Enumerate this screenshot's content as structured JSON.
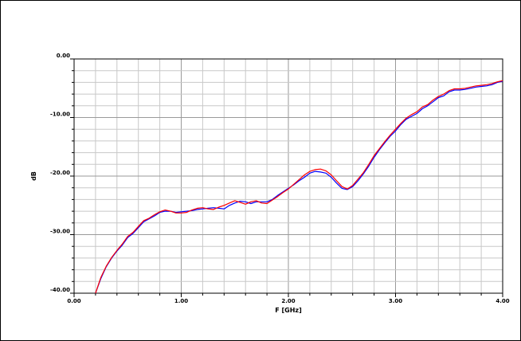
{
  "chart_data": {
    "type": "line",
    "xlabel": "F [GHz]",
    "ylabel": "dB",
    "xlim": [
      0,
      4
    ],
    "ylim": [
      -40,
      0
    ],
    "grid": true,
    "x_ticks": [
      "0.00",
      "1.00",
      "2.00",
      "3.00",
      "4.00"
    ],
    "y_ticks": [
      "0.00",
      "-10.00",
      "-20.00",
      "-30.00",
      "-40.00"
    ],
    "x_tick_values": [
      0,
      1,
      2,
      3,
      4
    ],
    "y_tick_values": [
      0,
      -10,
      -20,
      -30,
      -40
    ],
    "series": [
      {
        "color": "#0000ff",
        "x": [
          0.2,
          0.25,
          0.3,
          0.35,
          0.4,
          0.45,
          0.5,
          0.55,
          0.6,
          0.65,
          0.7,
          0.75,
          0.8,
          0.85,
          0.9,
          0.95,
          1.0,
          1.05,
          1.1,
          1.15,
          1.2,
          1.25,
          1.3,
          1.35,
          1.4,
          1.45,
          1.5,
          1.55,
          1.6,
          1.65,
          1.7,
          1.75,
          1.8,
          1.85,
          1.9,
          1.95,
          2.0,
          2.05,
          2.1,
          2.15,
          2.2,
          2.25,
          2.3,
          2.35,
          2.4,
          2.45,
          2.5,
          2.55,
          2.6,
          2.65,
          2.7,
          2.75,
          2.8,
          2.85,
          2.9,
          2.95,
          3.0,
          3.05,
          3.1,
          3.15,
          3.2,
          3.25,
          3.3,
          3.35,
          3.4,
          3.45,
          3.5,
          3.55,
          3.6,
          3.65,
          3.7,
          3.75,
          3.8,
          3.85,
          3.9,
          3.95,
          4.0
        ],
        "y": [
          -40.0,
          -37.5,
          -35.5,
          -34.0,
          -32.8,
          -31.8,
          -30.5,
          -29.8,
          -28.8,
          -27.8,
          -27.3,
          -26.8,
          -26.2,
          -26.0,
          -26.0,
          -26.2,
          -26.1,
          -26.0,
          -25.9,
          -25.7,
          -25.6,
          -25.5,
          -25.4,
          -25.5,
          -25.6,
          -25.0,
          -24.6,
          -24.3,
          -24.4,
          -24.7,
          -24.4,
          -24.4,
          -24.4,
          -24.0,
          -23.3,
          -22.7,
          -22.1,
          -21.5,
          -20.8,
          -20.2,
          -19.5,
          -19.2,
          -19.3,
          -19.5,
          -20.2,
          -21.2,
          -22.1,
          -22.3,
          -21.8,
          -20.8,
          -19.6,
          -18.3,
          -16.8,
          -15.5,
          -14.3,
          -13.2,
          -12.3,
          -11.2,
          -10.3,
          -9.8,
          -9.3,
          -8.5,
          -8.0,
          -7.3,
          -6.6,
          -6.3,
          -5.6,
          -5.3,
          -5.3,
          -5.2,
          -5.0,
          -4.8,
          -4.7,
          -4.6,
          -4.4,
          -4.0,
          -3.8
        ]
      },
      {
        "color": "#ff0000",
        "x": [
          0.2,
          0.25,
          0.3,
          0.35,
          0.4,
          0.45,
          0.5,
          0.55,
          0.6,
          0.65,
          0.7,
          0.75,
          0.8,
          0.85,
          0.9,
          0.95,
          1.0,
          1.05,
          1.1,
          1.15,
          1.2,
          1.25,
          1.3,
          1.35,
          1.4,
          1.45,
          1.5,
          1.55,
          1.6,
          1.65,
          1.7,
          1.75,
          1.8,
          1.85,
          1.9,
          1.95,
          2.0,
          2.05,
          2.1,
          2.15,
          2.2,
          2.25,
          2.3,
          2.35,
          2.4,
          2.45,
          2.5,
          2.55,
          2.6,
          2.65,
          2.7,
          2.75,
          2.8,
          2.85,
          2.9,
          2.95,
          3.0,
          3.05,
          3.1,
          3.15,
          3.2,
          3.25,
          3.3,
          3.35,
          3.4,
          3.45,
          3.5,
          3.55,
          3.6,
          3.65,
          3.7,
          3.75,
          3.8,
          3.85,
          3.9,
          3.95,
          4.0
        ],
        "y": [
          -40.0,
          -37.3,
          -35.4,
          -33.9,
          -32.7,
          -31.6,
          -30.3,
          -29.6,
          -28.6,
          -27.6,
          -27.2,
          -26.6,
          -26.1,
          -25.8,
          -26.0,
          -26.3,
          -26.3,
          -26.2,
          -25.8,
          -25.5,
          -25.4,
          -25.6,
          -25.7,
          -25.3,
          -25.0,
          -24.6,
          -24.2,
          -24.5,
          -24.8,
          -24.4,
          -24.2,
          -24.6,
          -24.7,
          -24.1,
          -23.5,
          -22.8,
          -22.2,
          -21.4,
          -20.6,
          -19.8,
          -19.2,
          -18.9,
          -18.8,
          -19.1,
          -19.8,
          -20.8,
          -21.8,
          -22.2,
          -21.6,
          -20.5,
          -19.4,
          -18.0,
          -16.5,
          -15.3,
          -14.1,
          -13.0,
          -12.0,
          -11.0,
          -10.1,
          -9.5,
          -9.0,
          -8.2,
          -7.8,
          -7.0,
          -6.4,
          -6.0,
          -5.4,
          -5.1,
          -5.1,
          -5.0,
          -4.8,
          -4.6,
          -4.5,
          -4.4,
          -4.2,
          -3.9,
          -3.7
        ]
      }
    ]
  }
}
